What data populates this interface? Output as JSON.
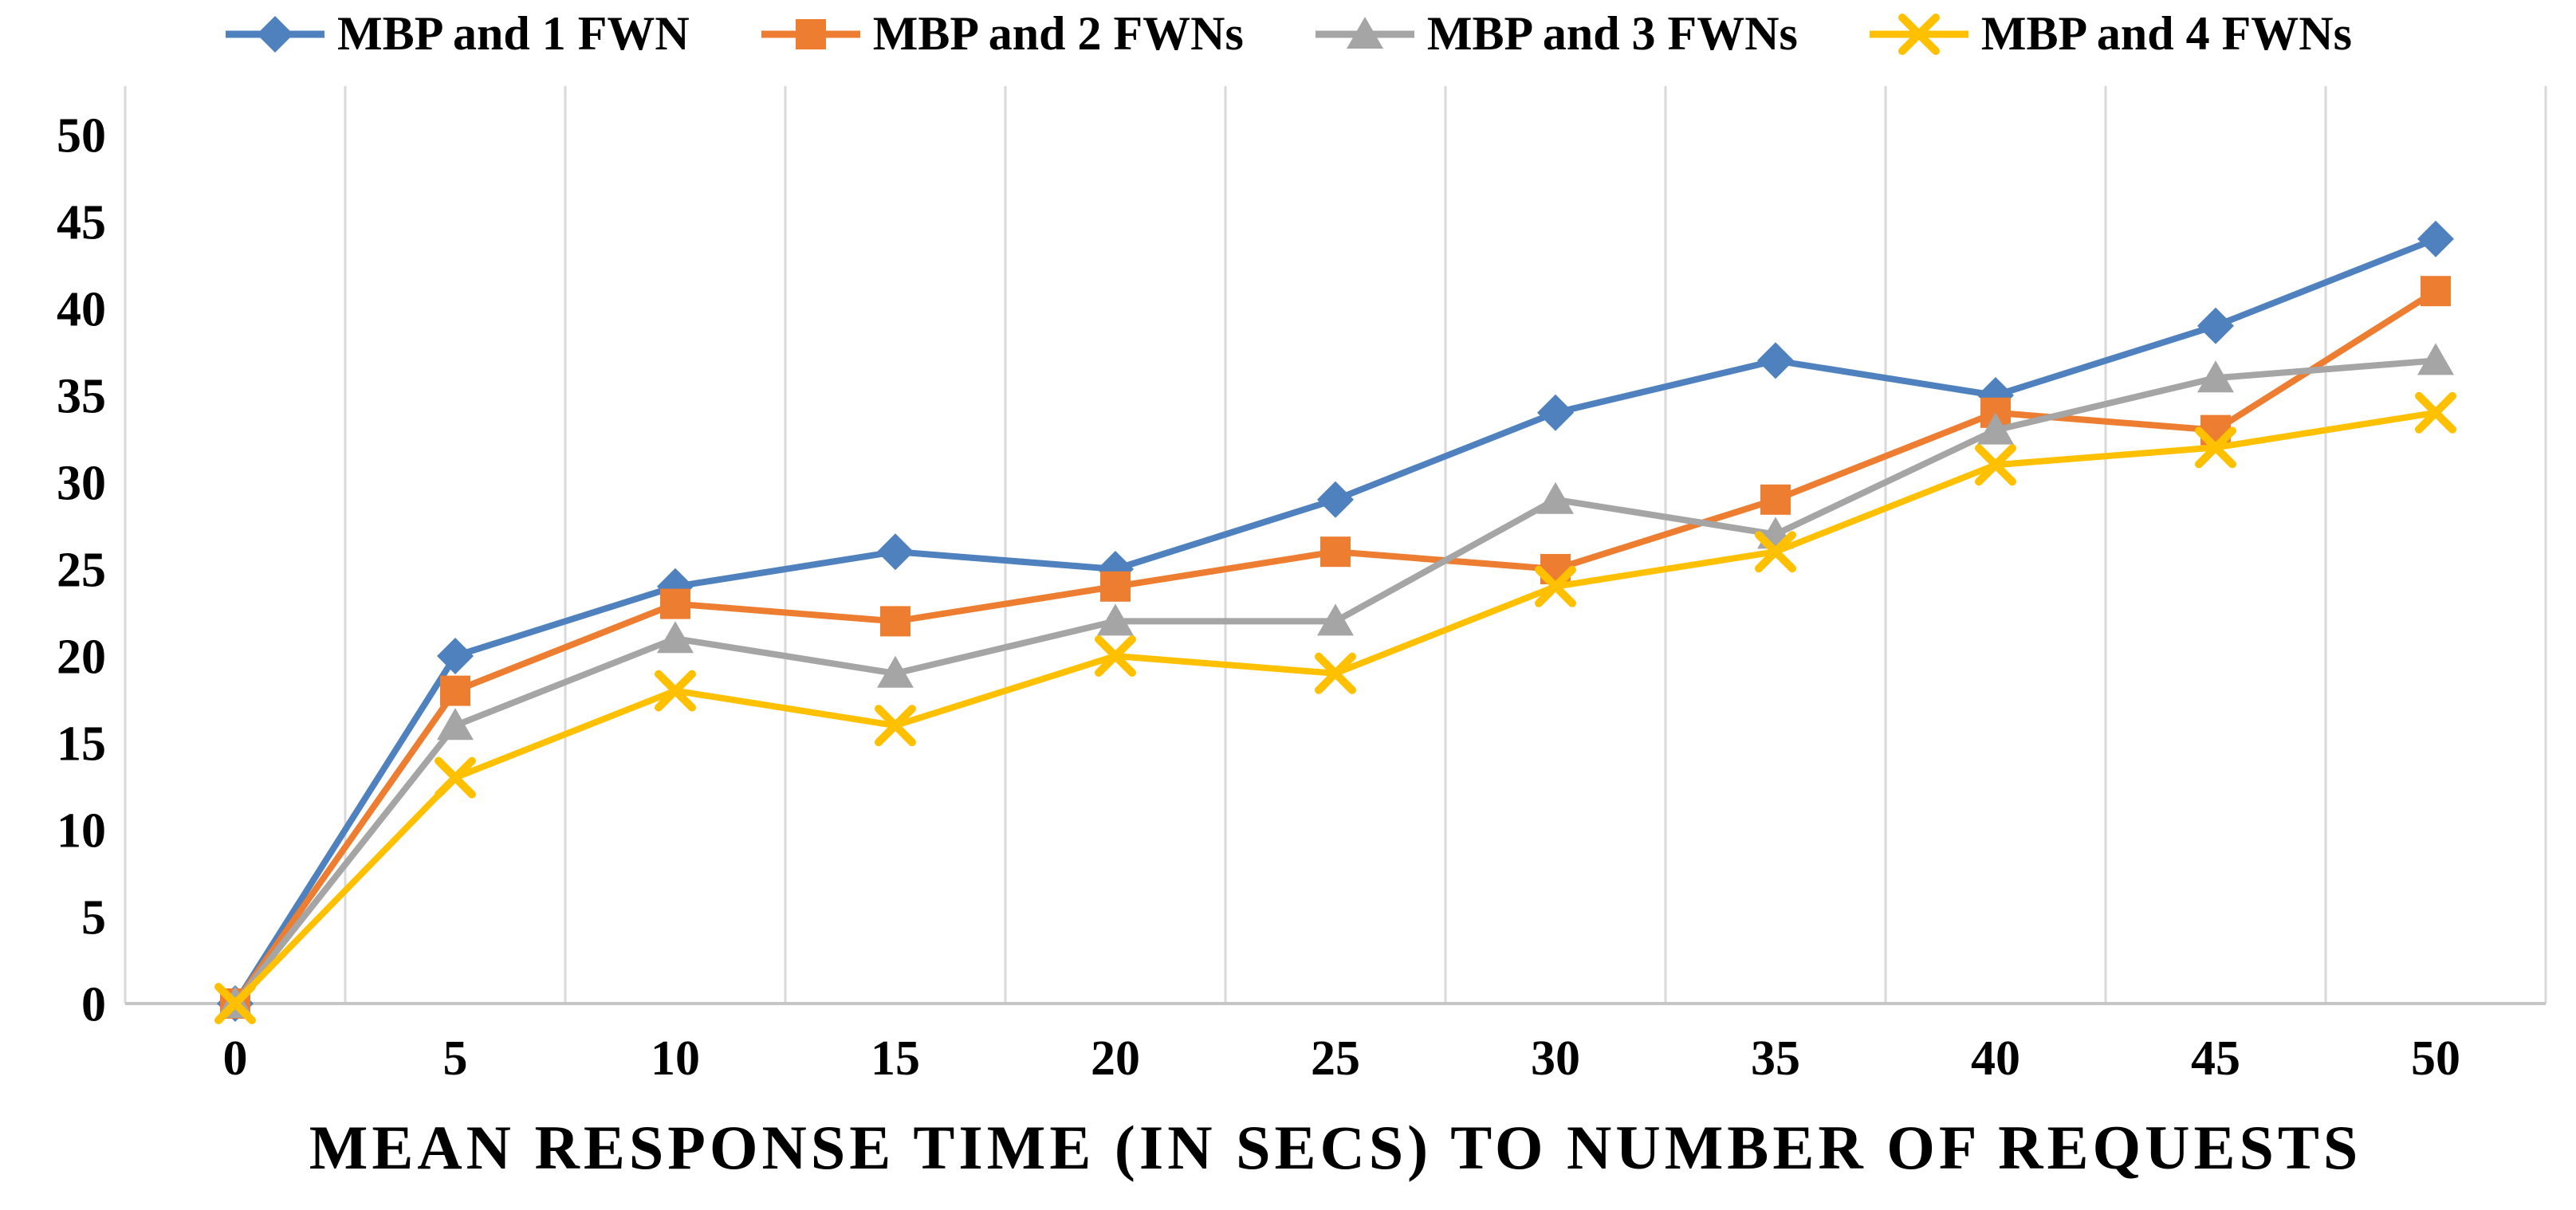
{
  "chart_data": {
    "type": "line",
    "title": "",
    "xlabel": "MEAN RESPONSE TIME (IN SECS) TO NUMBER OF REQUESTS",
    "ylabel": "",
    "x": [
      0,
      5,
      10,
      15,
      20,
      25,
      30,
      35,
      40,
      45,
      50
    ],
    "ylim": [
      0,
      50
    ],
    "ytick_step": 5,
    "grid": "vertical-only",
    "legend_position": "top",
    "background_color": "#ffffff",
    "gridline_color": "#d9d9d9",
    "axis_line_color": "#c6c6c6",
    "text_color": "#000000",
    "series": [
      {
        "name": "MBP and 1 FWN",
        "marker": "diamond",
        "color": "#4e81bd",
        "values": [
          0,
          20,
          24,
          26,
          25,
          29,
          34,
          37,
          35,
          39,
          44
        ]
      },
      {
        "name": "MBP and 2 FWNs",
        "marker": "square",
        "color": "#ed7d31",
        "values": [
          0,
          18,
          23,
          22,
          24,
          26,
          25,
          29,
          34,
          33,
          41
        ]
      },
      {
        "name": "MBP and 3 FWNs",
        "marker": "triangle",
        "color": "#a5a5a5",
        "values": [
          0,
          16,
          21,
          19,
          22,
          22,
          29,
          27,
          33,
          36,
          37
        ]
      },
      {
        "name": "MBP and 4 FWNs",
        "marker": "x",
        "color": "#ffc000",
        "values": [
          0,
          13,
          18,
          16,
          20,
          19,
          24,
          26,
          31,
          32,
          34
        ]
      }
    ]
  }
}
